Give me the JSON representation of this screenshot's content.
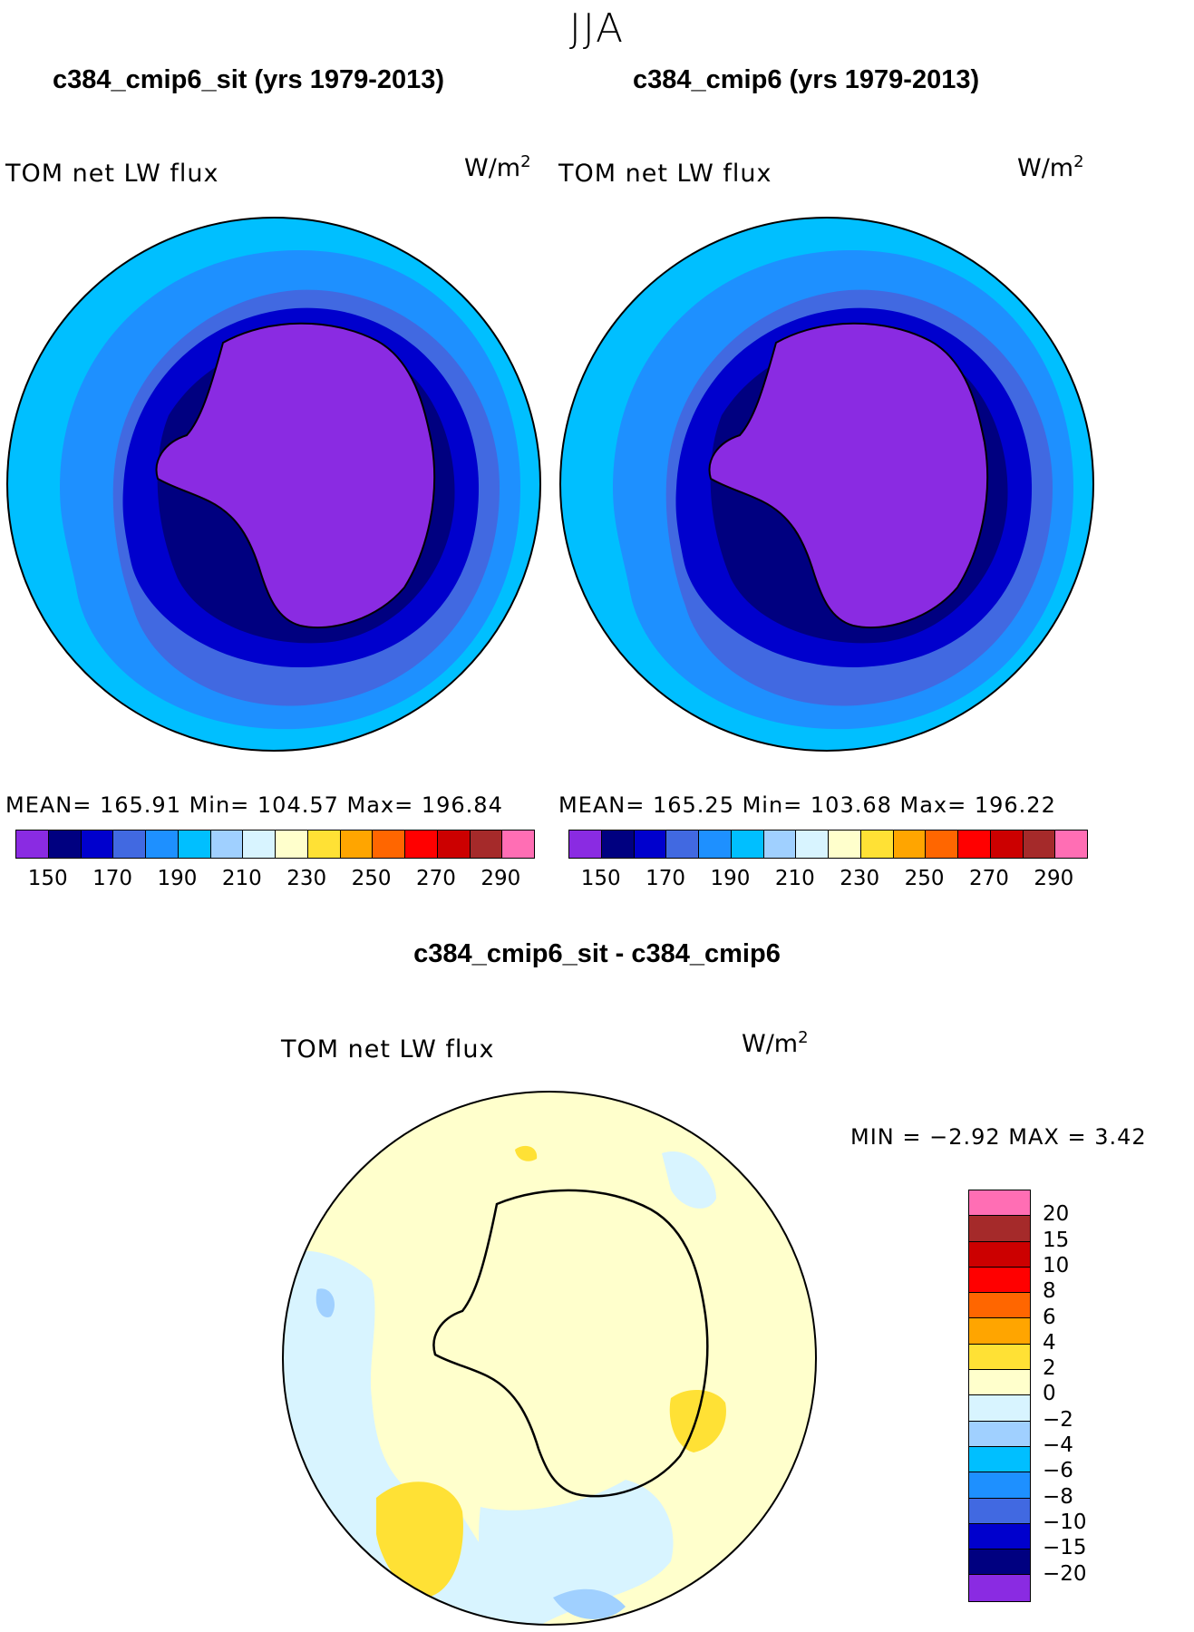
{
  "season": "JJA",
  "panels": [
    {
      "title": "c384_cmip6_sit (yrs 1979-2013)",
      "variable": "TOM net LW flux",
      "units_base": "W/m",
      "units_exp": "2",
      "stats": "MEAN= 165.91   Min= 104.57   Max= 196.84"
    },
    {
      "title": "c384_cmip6 (yrs 1979-2013)",
      "variable": "TOM net LW flux",
      "units_base": "W/m",
      "units_exp": "2",
      "stats": "MEAN= 165.25   Min= 103.68   Max= 196.22"
    }
  ],
  "main_colorbar": {
    "colors": [
      "#8a2be2",
      "#000080",
      "#0000cd",
      "#4169e1",
      "#1e90ff",
      "#00bfff",
      "#a0d0ff",
      "#d8f4ff",
      "#ffffcc",
      "#ffe135",
      "#ffa500",
      "#ff6600",
      "#ff0000",
      "#cc0000",
      "#a52a2a",
      "#ff6eb4"
    ],
    "ticks": [
      "150",
      "170",
      "190",
      "210",
      "230",
      "250",
      "270",
      "290"
    ]
  },
  "diff": {
    "title": "c384_cmip6_sit - c384_cmip6",
    "variable": "TOM net LW flux",
    "units_base": "W/m",
    "units_exp": "2",
    "minmax": "MIN =   −2.92 MAX =    3.42",
    "colorbar": {
      "colors": [
        "#ff6eb4",
        "#a52a2a",
        "#cc0000",
        "#ff0000",
        "#ff6600",
        "#ffa500",
        "#ffe135",
        "#ffffcc",
        "#d8f4ff",
        "#a0d0ff",
        "#00bfff",
        "#1e90ff",
        "#4169e1",
        "#0000cd",
        "#000080",
        "#8a2be2"
      ],
      "ticks": [
        "20",
        "15",
        "10",
        "8",
        "6",
        "4",
        "2",
        "0",
        "−2",
        "−4",
        "−6",
        "−8",
        "−10",
        "−15",
        "−20"
      ]
    }
  }
}
